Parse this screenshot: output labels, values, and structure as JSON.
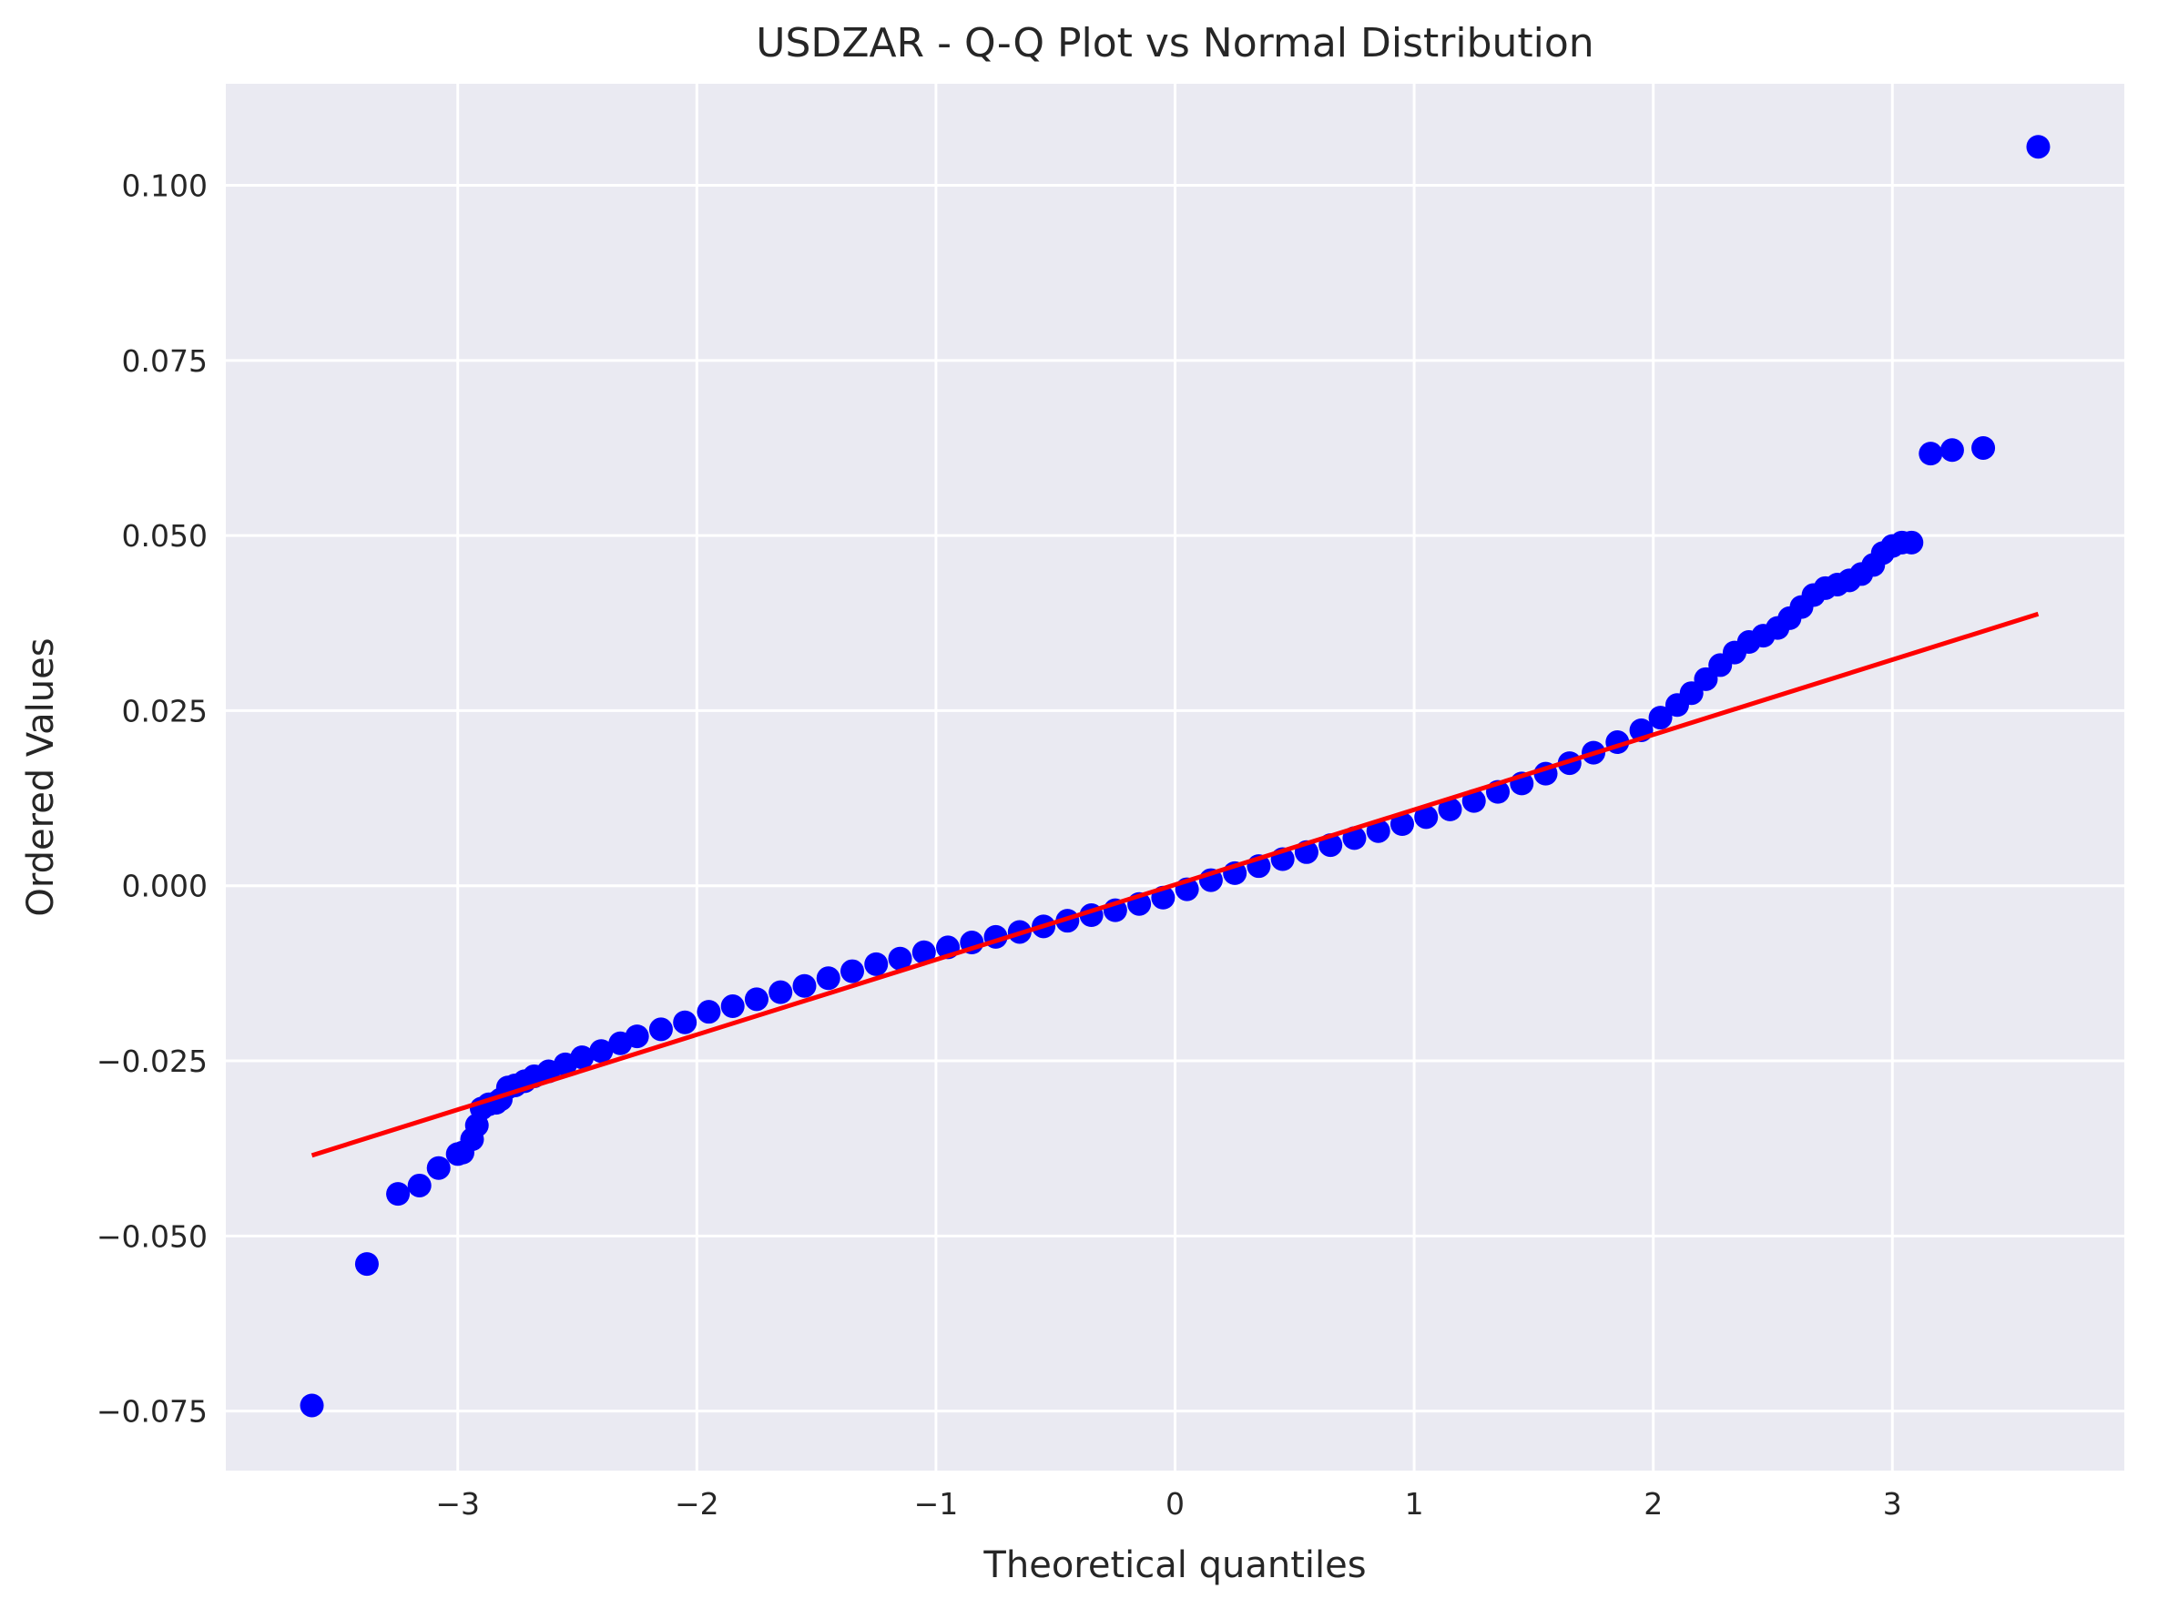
{
  "chart_data": {
    "type": "scatter",
    "title": "USDZAR - Q-Q Plot vs Normal Distribution",
    "xlabel": "Theoretical quantiles",
    "ylabel": "Ordered Values",
    "xlim": [
      -3.97,
      3.97
    ],
    "ylim": [
      -0.0835,
      0.1145
    ],
    "xticks": [
      -3,
      -2,
      -1,
      0,
      1,
      2,
      3
    ],
    "xtick_labels": [
      "−3",
      "−2",
      "−1",
      "0",
      "1",
      "2",
      "3"
    ],
    "yticks": [
      -0.075,
      -0.05,
      -0.025,
      0.0,
      0.025,
      0.05,
      0.075,
      0.1
    ],
    "ytick_labels": [
      "−0.075",
      "−0.050",
      "−0.025",
      "0.000",
      "0.025",
      "0.050",
      "0.075",
      "0.100"
    ],
    "grid": true,
    "background_color": "#eaeaf2",
    "series": [
      {
        "kind": "points",
        "color": "#0000ff",
        "x": [
          -3.61,
          -3.38,
          -3.25,
          -3.16,
          -3.08,
          -3.0,
          -2.98,
          -2.94,
          -2.92,
          -2.9,
          -2.87,
          -2.84,
          -2.82,
          -2.79,
          -2.76,
          -2.72,
          -2.68,
          -2.62,
          -2.55,
          -2.48,
          -2.4,
          -2.32,
          -2.25,
          -2.15,
          -2.05,
          -1.95,
          -1.85,
          -1.75,
          -1.65,
          -1.55,
          -1.45,
          -1.35,
          -1.25,
          -1.15,
          -1.05,
          -0.95,
          -0.85,
          -0.75,
          -0.65,
          -0.55,
          -0.45,
          -0.35,
          -0.25,
          -0.15,
          -0.05,
          0.05,
          0.15,
          0.25,
          0.35,
          0.45,
          0.55,
          0.65,
          0.75,
          0.85,
          0.95,
          1.05,
          1.15,
          1.25,
          1.35,
          1.45,
          1.55,
          1.65,
          1.75,
          1.85,
          1.95,
          2.03,
          2.1,
          2.16,
          2.22,
          2.28,
          2.34,
          2.4,
          2.46,
          2.52,
          2.57,
          2.62,
          2.67,
          2.72,
          2.77,
          2.82,
          2.87,
          2.92,
          2.96,
          3.0,
          3.04,
          3.08,
          3.16,
          3.25,
          3.38,
          3.61
        ],
        "y": [
          -0.0742,
          -0.054,
          -0.044,
          -0.0428,
          -0.0403,
          -0.0383,
          -0.0381,
          -0.0362,
          -0.0342,
          -0.0318,
          -0.0312,
          -0.031,
          -0.0305,
          -0.0288,
          -0.0285,
          -0.0279,
          -0.0272,
          -0.0265,
          -0.0255,
          -0.0245,
          -0.0236,
          -0.0225,
          -0.0215,
          -0.0205,
          -0.0195,
          -0.018,
          -0.0172,
          -0.0162,
          -0.0152,
          -0.0143,
          -0.0132,
          -0.0122,
          -0.0112,
          -0.0104,
          -0.0095,
          -0.0088,
          -0.0081,
          -0.0073,
          -0.0066,
          -0.0058,
          -0.005,
          -0.0042,
          -0.0035,
          -0.0026,
          -0.0017,
          -0.0005,
          0.0008,
          0.0018,
          0.0028,
          0.0038,
          0.0048,
          0.0058,
          0.0068,
          0.0078,
          0.0088,
          0.0098,
          0.0109,
          0.0121,
          0.0134,
          0.0146,
          0.016,
          0.0175,
          0.019,
          0.0205,
          0.0222,
          0.024,
          0.0258,
          0.0275,
          0.0295,
          0.0315,
          0.0333,
          0.0348,
          0.0357,
          0.0368,
          0.0382,
          0.0398,
          0.0415,
          0.0425,
          0.043,
          0.0436,
          0.0445,
          0.0458,
          0.0475,
          0.0485,
          0.049,
          0.049,
          0.0617,
          0.0622,
          0.0625,
          0.1055
        ]
      },
      {
        "kind": "line",
        "color": "#ff0000",
        "x": [
          -3.61,
          3.61
        ],
        "y": [
          -0.0385,
          0.0388
        ]
      }
    ]
  }
}
